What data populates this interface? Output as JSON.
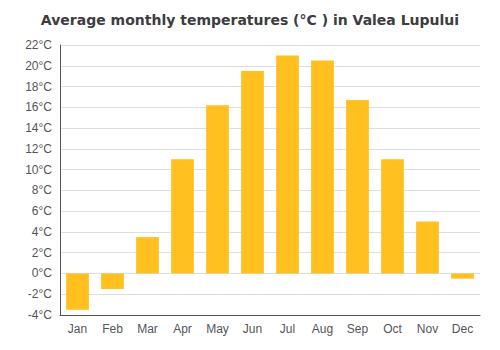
{
  "chart_data": {
    "type": "bar",
    "title": "Average monthly temperatures (°C ) in Valea Lupului",
    "categories": [
      "Jan",
      "Feb",
      "Mar",
      "Apr",
      "May",
      "Jun",
      "Jul",
      "Aug",
      "Sep",
      "Oct",
      "Nov",
      "Dec"
    ],
    "values": [
      -3.5,
      -1.5,
      3.5,
      11.0,
      16.2,
      19.5,
      21.0,
      20.5,
      16.7,
      11.0,
      5.0,
      -0.5
    ],
    "color": "#FFC020",
    "ylim": [
      -4,
      22
    ],
    "yticks": [
      {
        "value": -4,
        "label": "-4°C"
      },
      {
        "value": -2,
        "label": "-2°C"
      },
      {
        "value": 0,
        "label": "0°C"
      },
      {
        "value": 2,
        "label": "2°C"
      },
      {
        "value": 4,
        "label": "4°C"
      },
      {
        "value": 6,
        "label": "6°C"
      },
      {
        "value": 8,
        "label": "8°C"
      },
      {
        "value": 10,
        "label": "10°C"
      },
      {
        "value": 12,
        "label": "12°C"
      },
      {
        "value": 14,
        "label": "14°C"
      },
      {
        "value": 16,
        "label": "16°C"
      },
      {
        "value": 18,
        "label": "18°C"
      },
      {
        "value": 20,
        "label": "20°C"
      },
      {
        "value": 22,
        "label": "22°C"
      }
    ],
    "grid": true
  }
}
